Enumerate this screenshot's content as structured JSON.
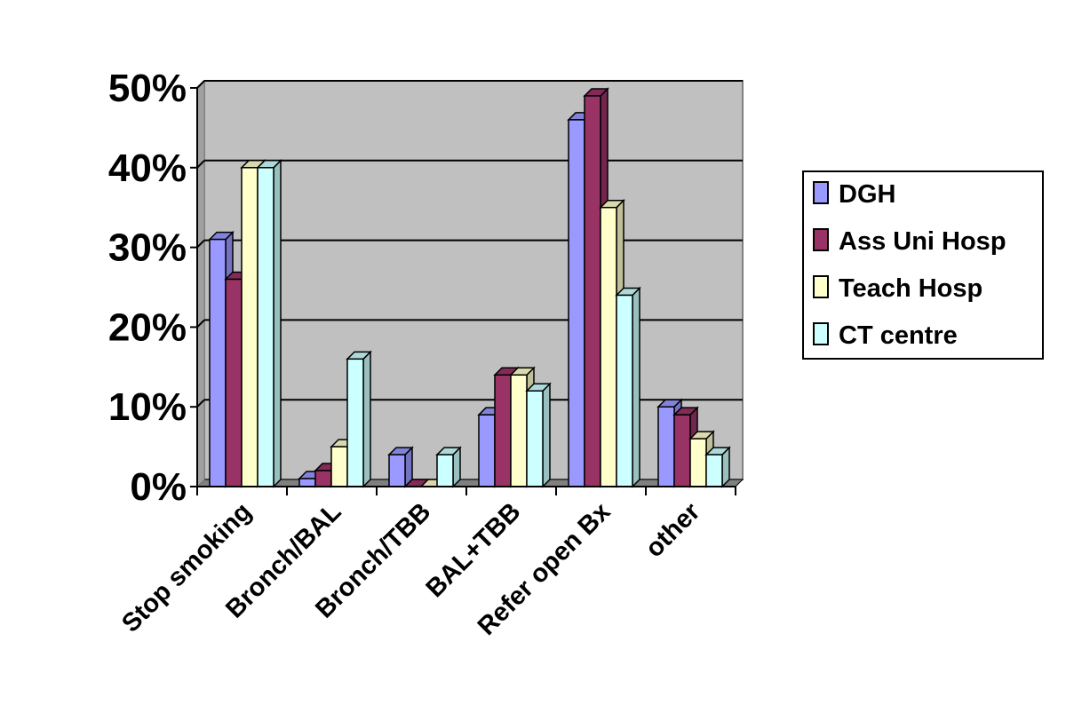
{
  "chart_data": {
    "type": "bar",
    "title": "",
    "xlabel": "",
    "ylabel": "",
    "categories": [
      "Stop smoking",
      "Bronch/BAL",
      "Bronch/TBB",
      "BAL+TBB",
      "Refer open Bx",
      "other"
    ],
    "series": [
      {
        "name": "DGH",
        "color": "#9999ff",
        "values": [
          31,
          1,
          4,
          9,
          46,
          10
        ]
      },
      {
        "name": "Ass Uni Hosp",
        "color": "#993366",
        "values": [
          26,
          2,
          0,
          14,
          49,
          9
        ]
      },
      {
        "name": "Teach Hosp",
        "color": "#ffffcc",
        "values": [
          40,
          5,
          0,
          14,
          35,
          6
        ]
      },
      {
        "name": "CT centre",
        "color": "#ccffff",
        "values": [
          40,
          16,
          4,
          12,
          24,
          4
        ]
      }
    ],
    "ylim": [
      0,
      50
    ],
    "yticks": [
      "0%",
      "10%",
      "20%",
      "30%",
      "40%",
      "50%"
    ],
    "grid": true,
    "legend": "right",
    "plot_background": "#c0c0c0"
  }
}
